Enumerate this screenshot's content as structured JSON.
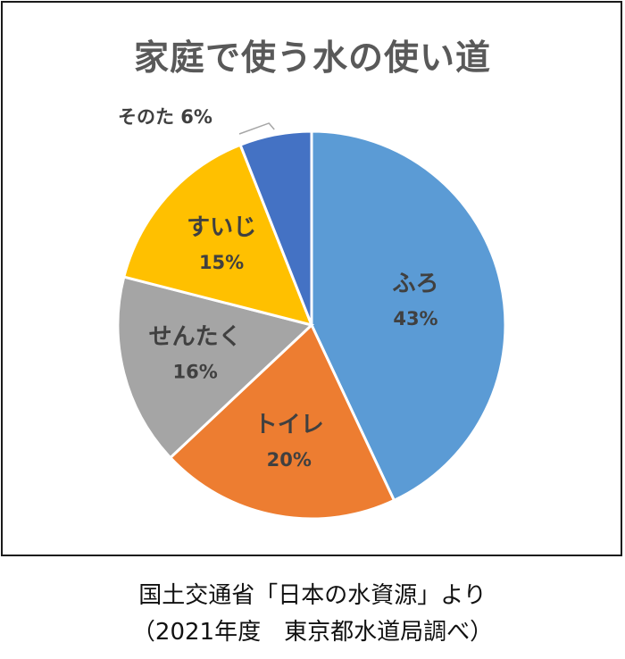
{
  "chart_data": {
    "type": "pie",
    "title": "家庭で使う水の使い道",
    "slices": [
      {
        "label": "ふろ",
        "value": 43,
        "percent_label": "43%",
        "color": "#5B9BD5"
      },
      {
        "label": "トイレ",
        "value": 20,
        "percent_label": "20%",
        "color": "#ED7D31"
      },
      {
        "label": "せんたく",
        "value": 16,
        "percent_label": "16%",
        "color": "#A5A5A5"
      },
      {
        "label": "すいじ",
        "value": 15,
        "percent_label": "15%",
        "color": "#FFC000"
      },
      {
        "label": "そのた",
        "value": 6,
        "percent_label": "6%",
        "color": "#4472C4"
      }
    ],
    "start_angle_deg": 0,
    "direction": "clockwise",
    "outside_label": "そのた 6%"
  },
  "source": {
    "line1": "国土交通省「日本の水資源」より",
    "line2": "（2021年度　東京都水道局調べ）"
  }
}
